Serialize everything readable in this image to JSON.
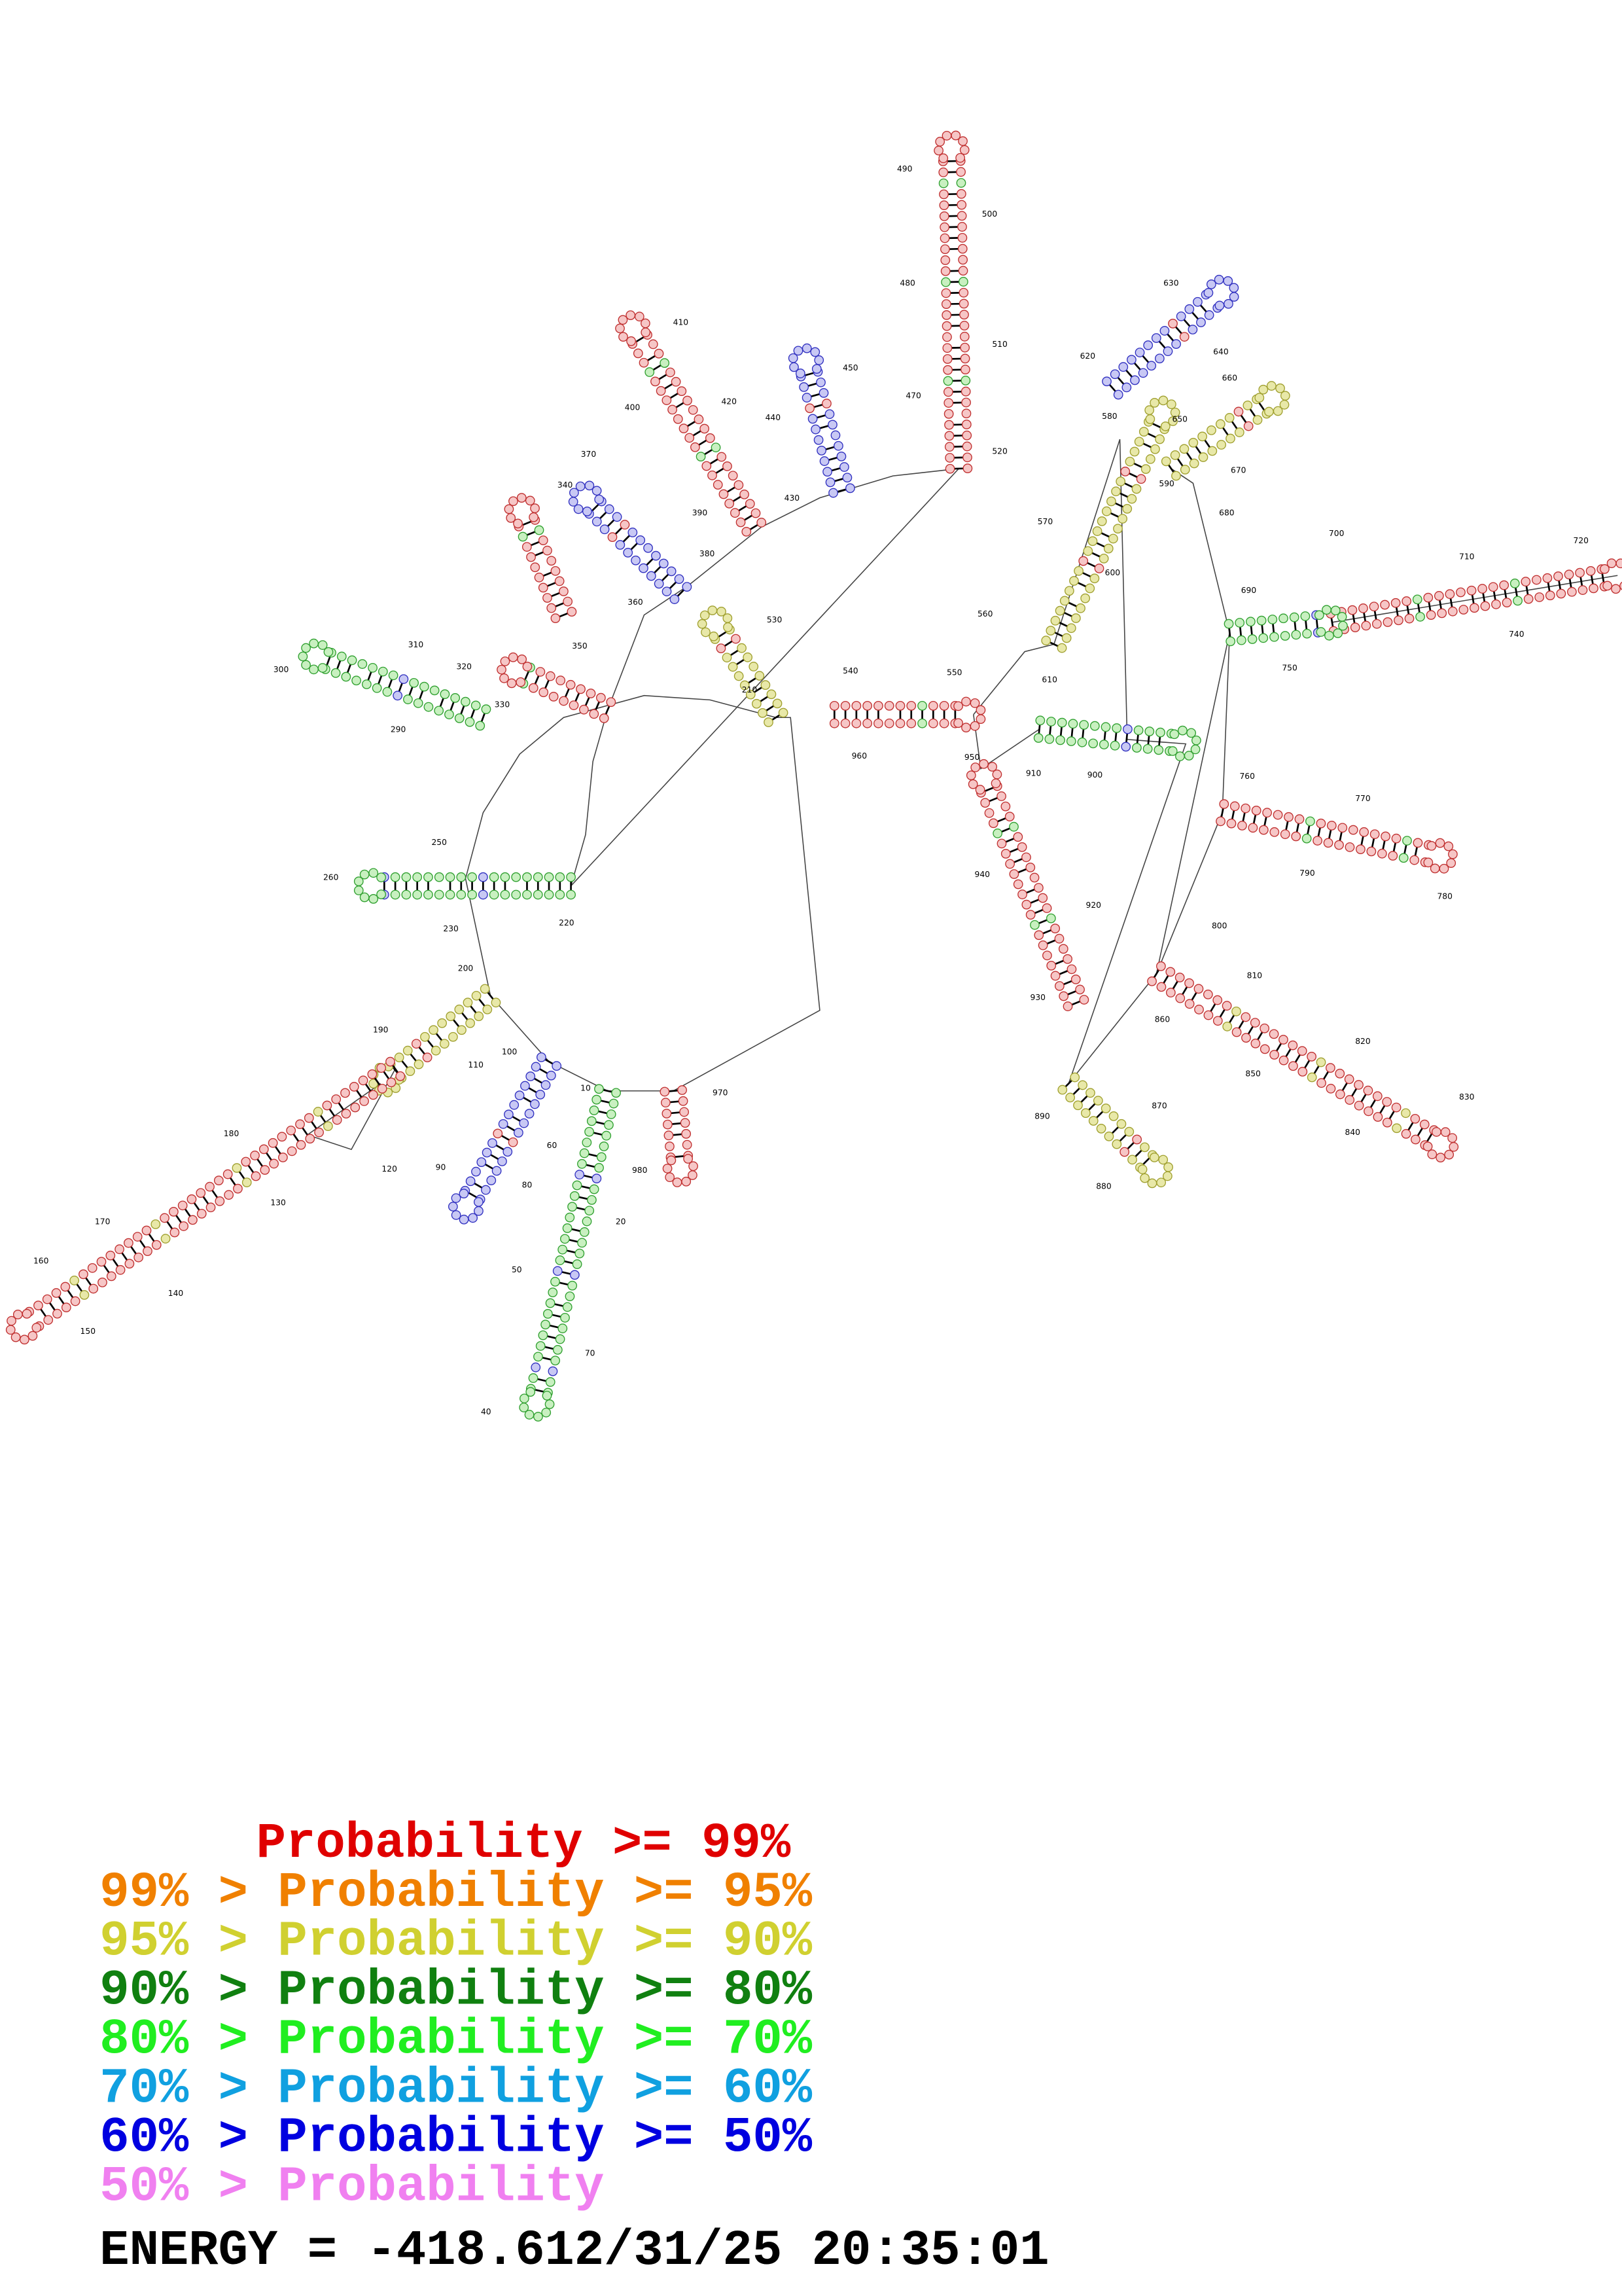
{
  "structure": {
    "labels": [
      "490",
      "500",
      "480",
      "510",
      "470",
      "520",
      "630",
      "640",
      "620",
      "580",
      "650",
      "660",
      "590",
      "670",
      "680",
      "410",
      "400",
      "420",
      "450",
      "440",
      "430",
      "390",
      "370",
      "340",
      "380",
      "360",
      "530",
      "570",
      "600",
      "700",
      "710",
      "720",
      "690",
      "740",
      "750",
      "560",
      "610",
      "540",
      "550",
      "310",
      "300",
      "320",
      "330",
      "350",
      "290",
      "210",
      "960",
      "950",
      "900",
      "910",
      "760",
      "770",
      "780",
      "790",
      "940",
      "920",
      "250",
      "260",
      "230",
      "220",
      "800",
      "930",
      "200",
      "810",
      "860",
      "190",
      "110",
      "100",
      "820",
      "850",
      "120",
      "130",
      "180",
      "970",
      "870",
      "980",
      "890",
      "880",
      "90",
      "80",
      "60",
      "20",
      "830",
      "840",
      "170",
      "160",
      "150",
      "140",
      "50",
      "70",
      "40",
      "10"
    ]
  },
  "legend": [
    {
      "text": "Probability >= 99%",
      "color": "#e00000"
    },
    {
      "text": "99% > Probability >= 95%",
      "color": "#f08000"
    },
    {
      "text": "95% > Probability >= 90%",
      "color": "#d0d030"
    },
    {
      "text": "90% > Probability >= 80%",
      "color": "#108010"
    },
    {
      "text": "80% > Probability >= 70%",
      "color": "#20ee20"
    },
    {
      "text": "70% > Probability >= 60%",
      "color": "#10a0e0"
    },
    {
      "text": "60% > Probability >= 50%",
      "color": "#0000e0"
    },
    {
      "text": "50% > Probability",
      "color": "#f080f0"
    }
  ],
  "energy": "ENERGY = -418.6",
  "timestamp": "12/31/25 20:35:01"
}
